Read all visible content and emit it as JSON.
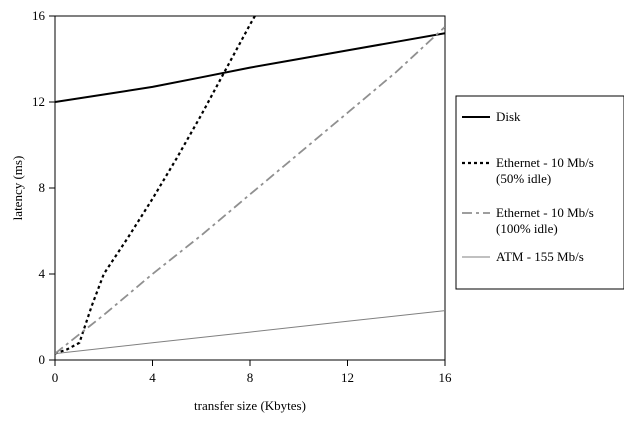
{
  "chart_data": {
    "type": "line",
    "xlabel": "transfer size (Kbytes)",
    "ylabel": "latency (ms)",
    "xlim": [
      0,
      16
    ],
    "ylim": [
      0,
      16
    ],
    "xticks": [
      0,
      4,
      8,
      12,
      16
    ],
    "yticks": [
      0,
      4,
      8,
      12,
      16
    ],
    "xtick_labels": [
      "0",
      "4",
      "8",
      "12",
      "16"
    ],
    "ytick_labels": [
      "0",
      "4",
      "8",
      "12",
      "16"
    ],
    "grid": false,
    "legend_position": "right",
    "series": [
      {
        "name": "Disk",
        "label_lines": [
          "Disk"
        ],
        "color": "#000000",
        "style": "solid",
        "points": [
          [
            0,
            12.0
          ],
          [
            2,
            12.35
          ],
          [
            4,
            12.7
          ],
          [
            6,
            13.15
          ],
          [
            8,
            13.6
          ],
          [
            10,
            14.0
          ],
          [
            12,
            14.4
          ],
          [
            14,
            14.8
          ],
          [
            16,
            15.2
          ]
        ]
      },
      {
        "name": "Ethernet - 10 Mb/s (50% idle)",
        "label_lines": [
          "Ethernet - 10 Mb/s",
          "(50% idle)"
        ],
        "color": "#000000",
        "style": "dotted",
        "points": [
          [
            0,
            0.3
          ],
          [
            0.5,
            0.5
          ],
          [
            1,
            0.8
          ],
          [
            1.5,
            2.5
          ],
          [
            2,
            4.0
          ],
          [
            3,
            5.7
          ],
          [
            4,
            7.5
          ],
          [
            5,
            9.4
          ],
          [
            6,
            11.4
          ],
          [
            7,
            13.5
          ],
          [
            8,
            15.6
          ],
          [
            8.2,
            16.0
          ]
        ]
      },
      {
        "name": "Ethernet - 10 Mb/s (100% idle)",
        "label_lines": [
          "Ethernet - 10 Mb/s",
          "(100% idle)"
        ],
        "color": "#909090",
        "style": "dashdot",
        "points": [
          [
            0,
            0.3
          ],
          [
            2,
            2.1
          ],
          [
            4,
            4.0
          ],
          [
            6,
            5.8
          ],
          [
            8,
            7.7
          ],
          [
            10,
            9.6
          ],
          [
            12,
            11.5
          ],
          [
            14,
            13.4
          ],
          [
            16,
            15.5
          ]
        ]
      },
      {
        "name": "ATM - 155 Mb/s",
        "label_lines": [
          "ATM - 155 Mb/s"
        ],
        "color": "#808080",
        "style": "solid-thin",
        "points": [
          [
            0,
            0.3
          ],
          [
            4,
            0.8
          ],
          [
            8,
            1.3
          ],
          [
            12,
            1.8
          ],
          [
            16,
            2.3
          ]
        ]
      }
    ]
  }
}
